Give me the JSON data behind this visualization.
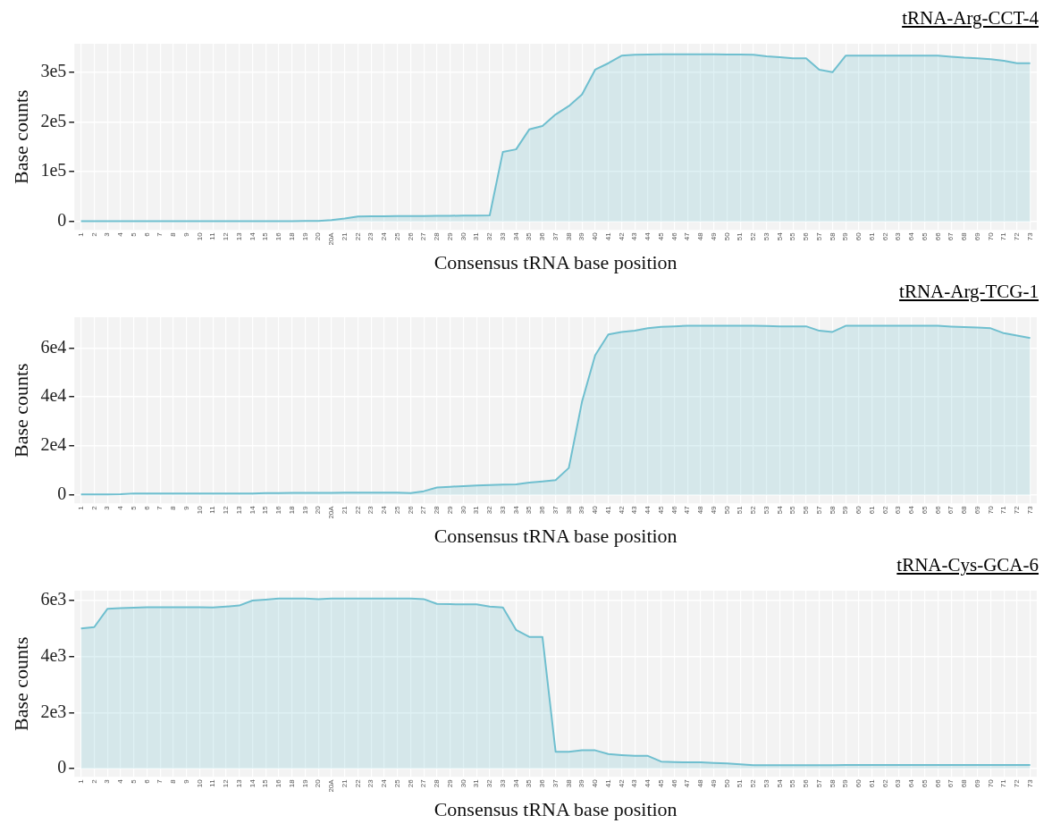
{
  "chart_data": [
    {
      "type": "area",
      "title": "tRNA-Arg-CCT-4",
      "xlabel": "Consensus tRNA base position",
      "ylabel": "Base counts",
      "categories": [
        "1",
        "2",
        "3",
        "4",
        "5",
        "6",
        "7",
        "8",
        "9",
        "10",
        "11",
        "12",
        "13",
        "14",
        "15",
        "16",
        "18",
        "19",
        "20",
        "20A",
        "21",
        "22",
        "23",
        "24",
        "25",
        "26",
        "27",
        "28",
        "29",
        "30",
        "31",
        "32",
        "33",
        "34",
        "35",
        "36",
        "37",
        "38",
        "39",
        "40",
        "41",
        "42",
        "43",
        "44",
        "45",
        "46",
        "47",
        "48",
        "49",
        "50",
        "51",
        "52",
        "53",
        "54",
        "55",
        "56",
        "57",
        "58",
        "59",
        "60",
        "61",
        "62",
        "63",
        "64",
        "65",
        "66",
        "67",
        "68",
        "69",
        "70",
        "71",
        "72",
        "73"
      ],
      "series": [
        {
          "color": "#6fbfcf",
          "values": [
            500,
            500,
            500,
            500,
            500,
            500,
            500,
            500,
            500,
            500,
            500,
            500,
            600,
            600,
            700,
            800,
            900,
            1000,
            1200,
            3000,
            6000,
            10000,
            10500,
            10500,
            11000,
            11000,
            11000,
            11500,
            11500,
            12000,
            12000,
            12500,
            140000,
            145000,
            185000,
            192000,
            215000,
            232000,
            255000,
            305000,
            318000,
            333000,
            335000,
            335500,
            336000,
            336000,
            336000,
            336000,
            336000,
            335500,
            335500,
            335000,
            332000,
            330000,
            328000,
            328000,
            305000,
            300000,
            333000,
            333000,
            333000,
            333000,
            333000,
            333000,
            333000,
            333000,
            331000,
            329000,
            328000,
            326000,
            323000,
            318000,
            318000
          ]
        }
      ],
      "ylim": [
        -17000,
        357000
      ],
      "yticks": [
        {
          "value": 0,
          "label": "0"
        },
        {
          "value": 100000,
          "label": "1e5"
        },
        {
          "value": 200000,
          "label": "2e5"
        },
        {
          "value": 300000,
          "label": "3e5"
        }
      ],
      "grid": true
    },
    {
      "type": "area",
      "title": "tRNA-Arg-TCG-1",
      "xlabel": "Consensus tRNA base position",
      "ylabel": "Base counts",
      "categories": [
        "1",
        "2",
        "3",
        "4",
        "5",
        "6",
        "7",
        "8",
        "9",
        "10",
        "11",
        "12",
        "13",
        "14",
        "15",
        "16",
        "18",
        "19",
        "20",
        "20A",
        "21",
        "22",
        "23",
        "24",
        "25",
        "26",
        "27",
        "28",
        "29",
        "30",
        "31",
        "32",
        "33",
        "34",
        "35",
        "36",
        "37",
        "38",
        "39",
        "40",
        "41",
        "42",
        "43",
        "44",
        "45",
        "46",
        "47",
        "48",
        "49",
        "50",
        "51",
        "52",
        "53",
        "54",
        "55",
        "56",
        "57",
        "58",
        "59",
        "60",
        "61",
        "62",
        "63",
        "64",
        "65",
        "66",
        "67",
        "68",
        "69",
        "70",
        "71",
        "72",
        "73"
      ],
      "series": [
        {
          "color": "#6fbfcf",
          "values": [
            200,
            200,
            200,
            300,
            600,
            600,
            600,
            600,
            600,
            600,
            600,
            600,
            600,
            600,
            700,
            700,
            800,
            800,
            800,
            800,
            900,
            900,
            900,
            900,
            900,
            700,
            1500,
            3000,
            3300,
            3600,
            3800,
            4000,
            4200,
            4300,
            5000,
            5500,
            6000,
            11000,
            38000,
            57000,
            65500,
            66500,
            67000,
            68000,
            68600,
            68800,
            69000,
            69000,
            69000,
            69000,
            69000,
            69000,
            68900,
            68800,
            68800,
            68800,
            67000,
            66500,
            69000,
            69000,
            69000,
            69000,
            69000,
            69000,
            69000,
            69000,
            68700,
            68500,
            68300,
            68000,
            66000,
            65000,
            64000
          ]
        }
      ],
      "ylim": [
        -3500,
        72500
      ],
      "yticks": [
        {
          "value": 0,
          "label": "0"
        },
        {
          "value": 20000,
          "label": "2e4"
        },
        {
          "value": 40000,
          "label": "4e4"
        },
        {
          "value": 60000,
          "label": "6e4"
        }
      ],
      "grid": true
    },
    {
      "type": "area",
      "title": "tRNA-Cys-GCA-6",
      "xlabel": "Consensus tRNA base position",
      "ylabel": "Base counts",
      "categories": [
        "1",
        "2",
        "3",
        "4",
        "5",
        "6",
        "7",
        "8",
        "9",
        "10",
        "11",
        "12",
        "13",
        "14",
        "15",
        "16",
        "18",
        "19",
        "20",
        "20A",
        "21",
        "22",
        "23",
        "24",
        "25",
        "26",
        "27",
        "28",
        "29",
        "30",
        "31",
        "32",
        "33",
        "34",
        "35",
        "36",
        "37",
        "38",
        "39",
        "40",
        "41",
        "42",
        "43",
        "44",
        "45",
        "46",
        "47",
        "48",
        "49",
        "50",
        "51",
        "52",
        "53",
        "54",
        "55",
        "56",
        "57",
        "58",
        "59",
        "60",
        "61",
        "62",
        "63",
        "64",
        "65",
        "66",
        "67",
        "68",
        "69",
        "70",
        "71",
        "72",
        "73"
      ],
      "series": [
        {
          "color": "#6fbfcf",
          "values": [
            5000,
            5050,
            5700,
            5730,
            5740,
            5760,
            5760,
            5760,
            5760,
            5760,
            5750,
            5780,
            5820,
            6000,
            6030,
            6070,
            6070,
            6070,
            6050,
            6070,
            6070,
            6070,
            6070,
            6070,
            6070,
            6070,
            6050,
            5880,
            5870,
            5860,
            5860,
            5780,
            5750,
            4950,
            4700,
            4700,
            600,
            600,
            650,
            650,
            520,
            480,
            450,
            450,
            250,
            230,
            220,
            220,
            200,
            180,
            150,
            120,
            120,
            120,
            120,
            120,
            120,
            120,
            130,
            130,
            130,
            130,
            130,
            130,
            130,
            130,
            130,
            130,
            130,
            130,
            130,
            130,
            130
          ]
        }
      ],
      "ylim": [
        -300,
        6350
      ],
      "yticks": [
        {
          "value": 0,
          "label": "0"
        },
        {
          "value": 2000,
          "label": "2e3"
        },
        {
          "value": 4000,
          "label": "4e3"
        },
        {
          "value": 6000,
          "label": "6e3"
        }
      ],
      "grid": true
    }
  ]
}
